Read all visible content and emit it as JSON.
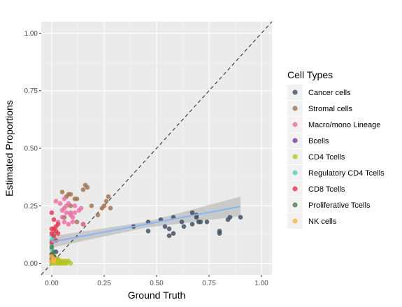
{
  "chart_data": {
    "type": "scatter",
    "xlabel": "Ground Truth",
    "ylabel": "Estimated Proportions",
    "xlim": [
      -0.05,
      1.05
    ],
    "ylim": [
      -0.05,
      1.05
    ],
    "x_ticks": [
      "0.00",
      "0.25",
      "0.50",
      "0.75",
      "1.00"
    ],
    "y_ticks": [
      "0.00",
      "0.25",
      "0.50",
      "0.75",
      "1.00"
    ],
    "grid": true,
    "legend_position": "right",
    "legend_title": "Cell Types",
    "identity_line": {
      "style": "dashed",
      "color": "#333333"
    },
    "regression": {
      "color": "#8ab4f8",
      "ribbon_color": "#bebebe",
      "points": [
        [
          0,
          0.093
        ],
        [
          0.9,
          0.247
        ]
      ],
      "ribbon_upper": [
        [
          0,
          0.118
        ],
        [
          0.45,
          0.18
        ],
        [
          0.9,
          0.29
        ]
      ],
      "ribbon_lower": [
        [
          0,
          0.068
        ],
        [
          0.45,
          0.155
        ],
        [
          0.9,
          0.205
        ]
      ]
    },
    "series": [
      {
        "name": "Cancer cells",
        "color": "#3a4a5a",
        "points": [
          [
            0.01,
            0.03
          ],
          [
            0.0,
            0.02
          ],
          [
            0.02,
            0.05
          ],
          [
            0.39,
            0.16
          ],
          [
            0.46,
            0.18
          ],
          [
            0.46,
            0.14
          ],
          [
            0.52,
            0.19
          ],
          [
            0.54,
            0.16
          ],
          [
            0.56,
            0.15
          ],
          [
            0.58,
            0.2
          ],
          [
            0.56,
            0.12
          ],
          [
            0.58,
            0.13
          ],
          [
            0.62,
            0.18
          ],
          [
            0.63,
            0.16
          ],
          [
            0.67,
            0.22
          ],
          [
            0.67,
            0.17
          ],
          [
            0.69,
            0.21
          ],
          [
            0.7,
            0.18
          ],
          [
            0.71,
            0.18
          ],
          [
            0.74,
            0.18
          ],
          [
            0.8,
            0.13
          ],
          [
            0.8,
            0.14
          ],
          [
            0.84,
            0.19
          ],
          [
            0.85,
            0.2
          ],
          [
            0.9,
            0.2
          ],
          [
            0.69,
            0.2
          ]
        ]
      },
      {
        "name": "Stromal cells",
        "color": "#a0704a",
        "points": [
          [
            0.05,
            0.31
          ],
          [
            0.08,
            0.3
          ],
          [
            0.09,
            0.3
          ],
          [
            0.11,
            0.28
          ],
          [
            0.12,
            0.28
          ],
          [
            0.15,
            0.32
          ],
          [
            0.16,
            0.34
          ],
          [
            0.17,
            0.33
          ],
          [
            0.19,
            0.25
          ],
          [
            0.22,
            0.21
          ],
          [
            0.24,
            0.24
          ],
          [
            0.25,
            0.25
          ],
          [
            0.26,
            0.27
          ],
          [
            0.27,
            0.29
          ],
          [
            0.28,
            0.24
          ],
          [
            0.15,
            0.17
          ],
          [
            0.12,
            0.18
          ],
          [
            0.06,
            0.2
          ],
          [
            0.09,
            0.25
          ],
          [
            0.07,
            0.29
          ]
        ]
      },
      {
        "name": "Macro/mono Lineage",
        "color": "#ec6aa0",
        "points": [
          [
            0.02,
            0.27
          ],
          [
            0.04,
            0.26
          ],
          [
            0.05,
            0.2
          ],
          [
            0.06,
            0.24
          ],
          [
            0.06,
            0.18
          ],
          [
            0.07,
            0.25
          ],
          [
            0.08,
            0.26
          ],
          [
            0.09,
            0.22
          ],
          [
            0.1,
            0.2
          ],
          [
            0.11,
            0.25
          ],
          [
            0.13,
            0.23
          ],
          [
            0.14,
            0.24
          ],
          [
            0.15,
            0.17
          ],
          [
            0.05,
            0.23
          ],
          [
            0.07,
            0.22
          ],
          [
            0.09,
            0.21
          ],
          [
            0.11,
            0.22
          ],
          [
            0.1,
            0.18
          ],
          [
            0.08,
            0.17
          ],
          [
            0.03,
            0.18
          ],
          [
            0.06,
            0.28
          ]
        ]
      },
      {
        "name": "Bcells",
        "color": "#7a3a9a",
        "points": [
          [
            0.0,
            0.01
          ],
          [
            0.01,
            0.02
          ],
          [
            0.0,
            0.03
          ],
          [
            0.01,
            0.01
          ],
          [
            0.0,
            0.04
          ],
          [
            0.02,
            0.02
          ]
        ]
      },
      {
        "name": "CD4 Tcells",
        "color": "#b4c41c",
        "points": [
          [
            0.0,
            0.01
          ],
          [
            0.01,
            0.0
          ],
          [
            0.02,
            0.0
          ],
          [
            0.02,
            0.01
          ],
          [
            0.03,
            0.0
          ],
          [
            0.03,
            0.01
          ],
          [
            0.04,
            0.0
          ],
          [
            0.04,
            0.01
          ],
          [
            0.05,
            0.0
          ],
          [
            0.05,
            0.01
          ],
          [
            0.06,
            0.0
          ],
          [
            0.06,
            0.01
          ],
          [
            0.07,
            0.0
          ],
          [
            0.07,
            0.01
          ],
          [
            0.08,
            0.01
          ],
          [
            0.09,
            0.0
          ],
          [
            0.03,
            0.02
          ],
          [
            0.01,
            0.01
          ],
          [
            0.0,
            0.0
          ],
          [
            0.02,
            0.02
          ]
        ]
      },
      {
        "name": "Regulatory CD4 Tcells",
        "color": "#4fd0c0",
        "points": [
          [
            0.0,
            0.12
          ],
          [
            0.0,
            0.1
          ],
          [
            0.01,
            0.11
          ],
          [
            0.0,
            0.08
          ],
          [
            0.01,
            0.13
          ],
          [
            0.0,
            0.06
          ]
        ]
      },
      {
        "name": "CD8 Tcells",
        "color": "#e8304a",
        "points": [
          [
            0.0,
            0.22
          ],
          [
            0.01,
            0.15
          ],
          [
            0.02,
            0.16
          ],
          [
            0.03,
            0.17
          ],
          [
            0.0,
            0.13
          ],
          [
            0.01,
            0.12
          ],
          [
            0.02,
            0.14
          ],
          [
            0.0,
            0.15
          ],
          [
            0.01,
            0.19
          ],
          [
            0.03,
            0.13
          ],
          [
            0.02,
            0.1
          ],
          [
            0.0,
            0.09
          ]
        ]
      },
      {
        "name": "Proliferative Tcells",
        "color": "#4a7a4a",
        "points": [
          [
            0.0,
            0.01
          ],
          [
            0.0,
            0.02
          ],
          [
            0.01,
            0.03
          ],
          [
            0.0,
            0.04
          ],
          [
            0.01,
            0.05
          ],
          [
            0.0,
            0.07
          ]
        ]
      },
      {
        "name": "NK cells",
        "color": "#ffb347",
        "points": [
          [
            0.0,
            0.01
          ],
          [
            0.01,
            0.02
          ],
          [
            0.0,
            0.03
          ],
          [
            0.01,
            0.01
          ]
        ]
      }
    ]
  }
}
